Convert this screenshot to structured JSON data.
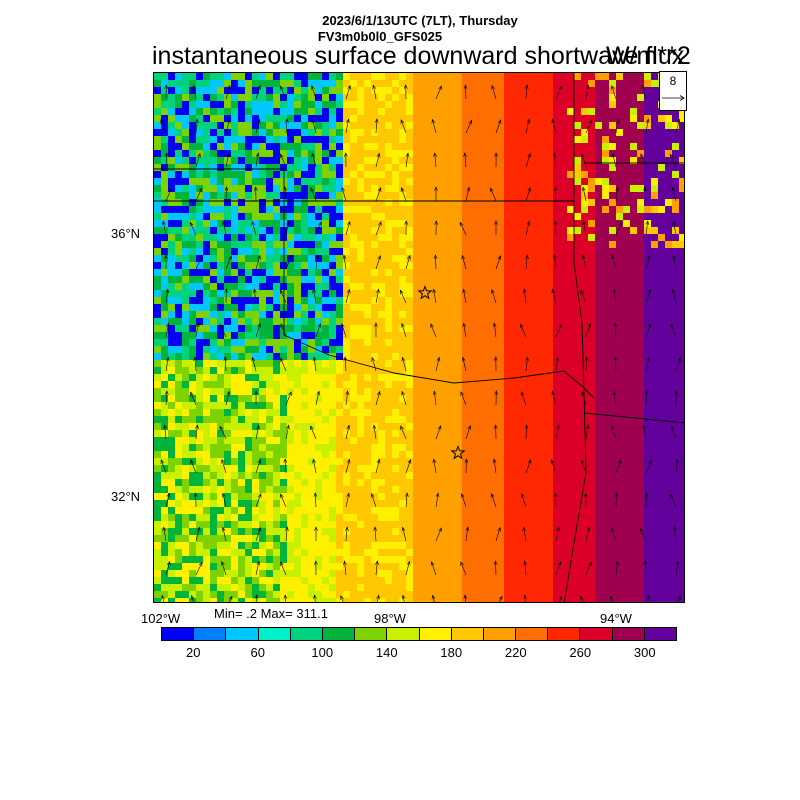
{
  "header": {
    "datetime": "2023/6/1/13UTC (7LT), Thursday",
    "model": "FV3m0b0l0_GFS025",
    "title": "instantaneous surface downward shortwave flux",
    "units": "W/m**2"
  },
  "reference_vector": {
    "value": "8"
  },
  "axes": {
    "lat_labels": [
      "36°N",
      "32°N"
    ],
    "lon_labels": [
      "102°W",
      "98°W",
      "94°W"
    ]
  },
  "stats": {
    "text": "Min= .2 Max= 311.1"
  },
  "colorbar": {
    "colors": [
      "#0000f2",
      "#0080ff",
      "#00c8ff",
      "#00f0c8",
      "#00d27d",
      "#00b43c",
      "#7dd200",
      "#c8f000",
      "#fff000",
      "#ffc800",
      "#ffa000",
      "#ff6e00",
      "#ff2800",
      "#dc0028",
      "#a00050",
      "#64009b"
    ],
    "tick_labels": [
      "20",
      "60",
      "100",
      "140",
      "180",
      "220",
      "260",
      "300"
    ]
  },
  "map": {
    "field": "surface downward shortwave flux",
    "west_band_colors": [
      "#0000f2",
      "#00c8ff",
      "#00d27d",
      "#7dd200",
      "#00b43c"
    ],
    "markers": [
      "star",
      "star"
    ]
  }
}
